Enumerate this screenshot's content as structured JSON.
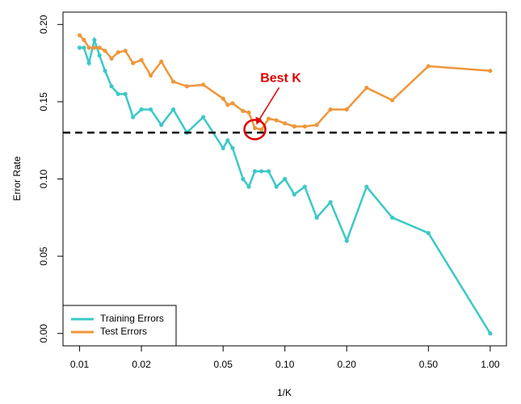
{
  "chart_data": {
    "type": "line",
    "xlabel": "1/K",
    "ylabel": "Error Rate",
    "xscale": "log",
    "x": [
      0.01,
      0.0105,
      0.0111,
      0.0118,
      0.0125,
      0.0133,
      0.0143,
      0.0154,
      0.0167,
      0.0182,
      0.02,
      0.0222,
      0.025,
      0.0286,
      0.0333,
      0.04,
      0.05,
      0.0526,
      0.0556,
      0.0625,
      0.0667,
      0.0714,
      0.0769,
      0.0833,
      0.0909,
      0.1,
      0.1111,
      0.125,
      0.1429,
      0.1667,
      0.2,
      0.25,
      0.3333,
      0.5,
      1
    ],
    "series": [
      {
        "name": "Training Errors",
        "color": "#3cc8c8",
        "values": [
          0.185,
          0.185,
          0.175,
          0.19,
          0.18,
          0.17,
          0.16,
          0.155,
          0.155,
          0.14,
          0.145,
          0.145,
          0.135,
          0.145,
          0.13,
          0.14,
          0.12,
          0.125,
          0.12,
          0.1,
          0.095,
          0.105,
          0.105,
          0.105,
          0.095,
          0.1,
          0.09,
          0.095,
          0.075,
          0.085,
          0.06,
          0.095,
          0.075,
          0.065,
          0
        ]
      },
      {
        "name": "Test Errors",
        "color": "#f0963c",
        "values": [
          0.193,
          0.19,
          0.185,
          0.185,
          0.185,
          0.183,
          0.178,
          0.182,
          0.183,
          0.175,
          0.177,
          0.167,
          0.176,
          0.163,
          0.16,
          0.161,
          0.152,
          0.148,
          0.149,
          0.144,
          0.143,
          0.133,
          0.132,
          0.139,
          0.138,
          0.136,
          0.134,
          0.134,
          0.135,
          0.145,
          0.145,
          0.159,
          0.151,
          0.173,
          0.17
        ]
      }
    ],
    "hline": 0.13,
    "annotation": {
      "text": "Best K",
      "x": 0.0714,
      "y": 0.132,
      "color": "#e00000"
    },
    "xlim": [
      0.0083,
      1.2
    ],
    "xticks": [
      0.01,
      0.02,
      0.05,
      {
        "value": 0.1,
        "label": "0.10"
      },
      {
        "value": 0.2,
        "label": "0.20"
      },
      {
        "value": 0.5,
        "label": "0.50"
      },
      {
        "value": 1,
        "label": "1.00"
      }
    ],
    "ylim": [
      -0.008,
      0.208
    ],
    "yticks": [
      {
        "value": 0,
        "label": "0.00"
      },
      0.05,
      {
        "value": 0.1,
        "label": "0.10"
      },
      0.15,
      {
        "value": 0.2,
        "label": "0.20"
      }
    ],
    "legend": "bottom-left"
  }
}
